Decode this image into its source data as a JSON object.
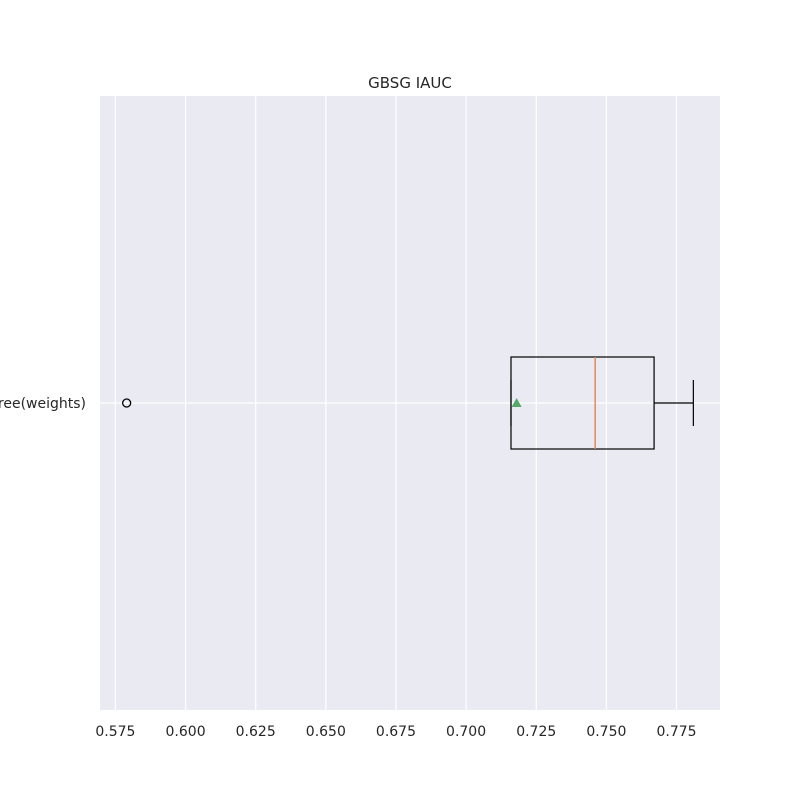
{
  "chart_data": {
    "type": "boxplot",
    "orientation": "horizontal",
    "title": "GBSG IAUC",
    "xlabel": "",
    "ylabel": "",
    "xlim": [
      0.5695,
      0.7905
    ],
    "xticks": [
      0.575,
      0.6,
      0.625,
      0.65,
      0.675,
      0.7,
      0.725,
      0.75,
      0.775
    ],
    "xtick_labels": [
      "0.575",
      "0.600",
      "0.625",
      "0.650",
      "0.675",
      "0.700",
      "0.725",
      "0.750",
      "0.775"
    ],
    "grid": true,
    "categories": [
      "Tree(weights)"
    ],
    "boxes": [
      {
        "label": "Tree(weights)",
        "whisker_low": 0.716,
        "q1": 0.716,
        "median": 0.746,
        "q3": 0.767,
        "whisker_high": 0.781,
        "mean": 0.718,
        "outliers": [
          0.579
        ]
      }
    ],
    "colors": {
      "background": "#eaeaf2",
      "grid": "#ffffff",
      "box": "#000000",
      "median": "#dd8452",
      "mean": "#55a868"
    }
  }
}
